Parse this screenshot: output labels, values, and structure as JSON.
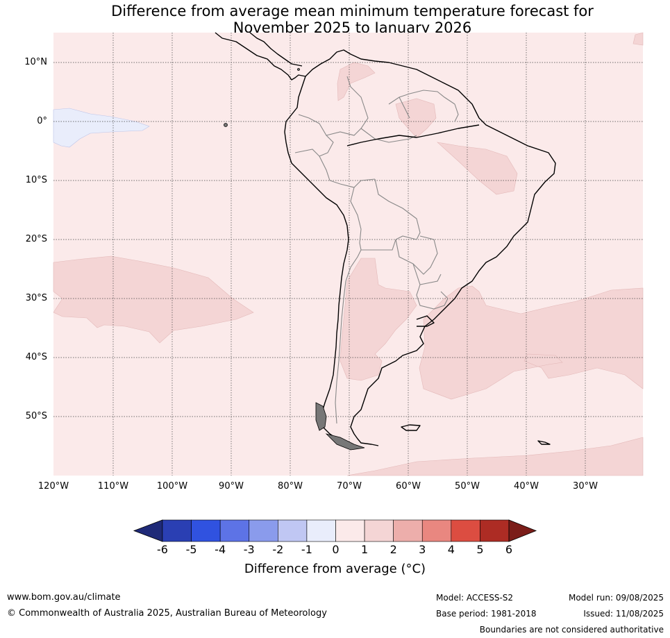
{
  "title": {
    "line1": "Difference from average mean minimum temperature forecast for",
    "line2": "November 2025 to January 2026"
  },
  "map": {
    "lat_labels": [
      "10°N",
      "0°",
      "10°S",
      "20°S",
      "30°S",
      "40°S",
      "50°S"
    ],
    "lon_labels": [
      "120°W",
      "110°W",
      "100°W",
      "90°W",
      "80°W",
      "70°W",
      "60°W",
      "50°W",
      "40°W",
      "30°W"
    ],
    "background_category": "0 to 1",
    "region_colors": {
      "m1_0": "#e9edfb",
      "0_1": "#fbeaea",
      "1_2": "#f4d5d5"
    }
  },
  "colorbar": {
    "ticks": [
      "-6",
      "-5",
      "-4",
      "-3",
      "-2",
      "-1",
      "0",
      "1",
      "2",
      "3",
      "4",
      "5",
      "6"
    ],
    "colors": [
      "#1f2a78",
      "#2a3fb3",
      "#3052e0",
      "#5d73e6",
      "#8a9bec",
      "#c0c7f3",
      "#e9edfb",
      "#fbeaea",
      "#f4d5d5",
      "#edaeab",
      "#e98780",
      "#dc4d41",
      "#ad2c24",
      "#7b1d19"
    ],
    "title": "Difference from average (°C)"
  },
  "footer": {
    "website": "www.bom.gov.au/climate",
    "copyright": "© Commonwealth of Australia 2025, Australian Bureau of Meteorology",
    "model": "Model: ACCESS-S2",
    "base_period": "Base period: 1981-2018",
    "model_run": "Model run: 09/08/2025",
    "issued": "Issued: 11/08/2025",
    "disclaimer": "Boundaries are not considered authoritative"
  }
}
